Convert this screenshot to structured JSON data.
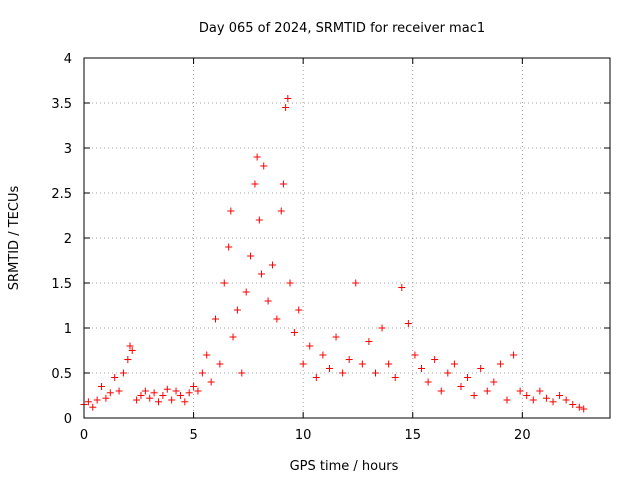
{
  "chart_data": {
    "type": "scatter",
    "title": "Day 065 of 2024, SRMTID for receiver mac1",
    "xlabel": "GPS time / hours",
    "ylabel": "SRMTID / TECUs",
    "xlim": [
      0,
      24
    ],
    "ylim": [
      0,
      4
    ],
    "xticks": [
      0,
      5,
      10,
      15,
      20
    ],
    "yticks": [
      0,
      0.5,
      1,
      1.5,
      2,
      2.5,
      3,
      3.5,
      4
    ],
    "xtick_labels": [
      "0",
      "5",
      "10",
      "15",
      "20"
    ],
    "ytick_labels": [
      "0",
      "0.5",
      "1",
      "1.5",
      "2",
      "2.5",
      "3",
      "3.5",
      "4"
    ],
    "grid": true,
    "marker": "+",
    "color": "#ff0000",
    "series": [
      {
        "name": "SRMTID",
        "x": [
          0.0,
          0.2,
          0.4,
          0.6,
          0.8,
          1.0,
          1.2,
          1.4,
          1.6,
          1.8,
          2.0,
          2.1,
          2.2,
          2.4,
          2.6,
          2.8,
          3.0,
          3.2,
          3.4,
          3.6,
          3.8,
          4.0,
          4.2,
          4.4,
          4.6,
          4.8,
          5.0,
          5.2,
          5.4,
          5.6,
          5.8,
          6.0,
          6.2,
          6.4,
          6.6,
          6.7,
          6.8,
          7.0,
          7.2,
          7.4,
          7.6,
          7.8,
          7.9,
          8.0,
          8.1,
          8.2,
          8.4,
          8.6,
          8.8,
          9.0,
          9.1,
          9.2,
          9.3,
          9.4,
          9.6,
          9.8,
          10.0,
          10.3,
          10.6,
          10.9,
          11.2,
          11.5,
          11.8,
          12.1,
          12.4,
          12.7,
          13.0,
          13.3,
          13.6,
          13.9,
          14.2,
          14.5,
          14.8,
          15.1,
          15.4,
          15.7,
          16.0,
          16.3,
          16.6,
          16.9,
          17.2,
          17.5,
          17.8,
          18.1,
          18.4,
          18.7,
          19.0,
          19.3,
          19.6,
          19.9,
          20.2,
          20.5,
          20.8,
          21.1,
          21.4,
          21.7,
          22.0,
          22.3,
          22.6,
          22.8
        ],
        "y": [
          0.15,
          0.18,
          0.12,
          0.2,
          0.35,
          0.22,
          0.28,
          0.45,
          0.3,
          0.5,
          0.65,
          0.8,
          0.75,
          0.2,
          0.25,
          0.3,
          0.22,
          0.28,
          0.18,
          0.25,
          0.32,
          0.2,
          0.3,
          0.25,
          0.18,
          0.28,
          0.35,
          0.3,
          0.5,
          0.7,
          0.4,
          1.1,
          0.6,
          1.5,
          1.9,
          2.3,
          0.9,
          1.2,
          0.5,
          1.4,
          1.8,
          2.6,
          2.9,
          2.2,
          1.6,
          2.8,
          1.3,
          1.7,
          1.1,
          2.3,
          2.6,
          3.45,
          3.55,
          1.5,
          0.95,
          1.2,
          0.6,
          0.8,
          0.45,
          0.7,
          0.55,
          0.9,
          0.5,
          0.65,
          1.5,
          0.6,
          0.85,
          0.5,
          1.0,
          0.6,
          0.45,
          1.45,
          1.05,
          0.7,
          0.55,
          0.4,
          0.65,
          0.3,
          0.5,
          0.6,
          0.35,
          0.45,
          0.25,
          0.55,
          0.3,
          0.4,
          0.6,
          0.2,
          0.7,
          0.3,
          0.25,
          0.2,
          0.3,
          0.22,
          0.18,
          0.25,
          0.2,
          0.15,
          0.12,
          0.1
        ]
      }
    ]
  }
}
